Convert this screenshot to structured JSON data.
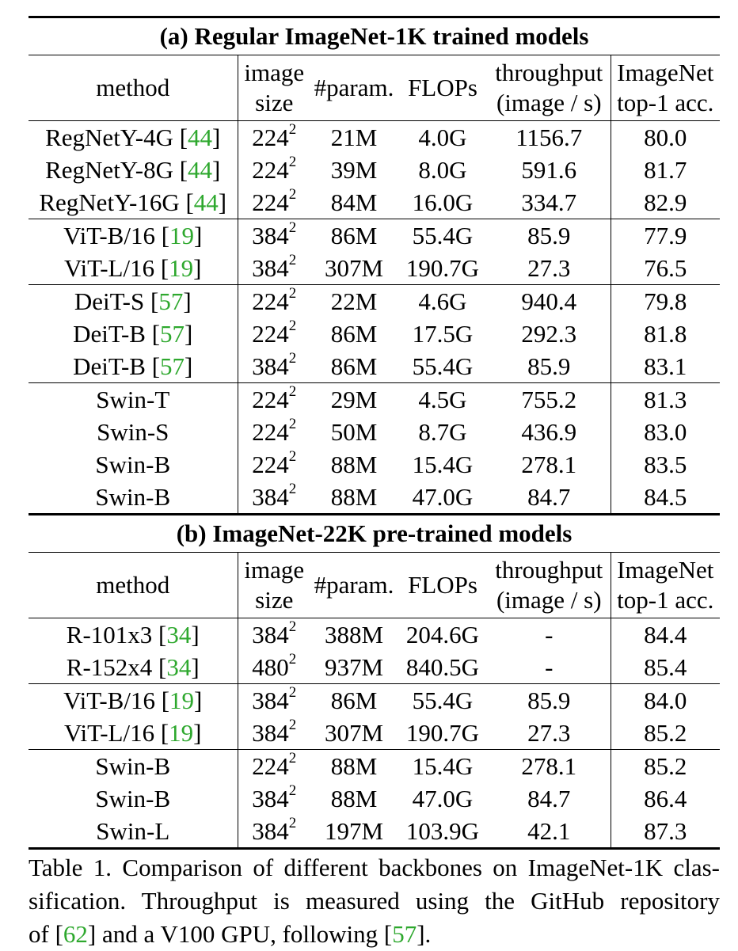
{
  "columns": {
    "method": "method",
    "image_size": [
      "image",
      "size"
    ],
    "params": "#param.",
    "flops": "FLOPs",
    "throughput": [
      "throughput",
      "(image / s)"
    ],
    "acc": [
      "ImageNet",
      "top-1 acc."
    ]
  },
  "sections": [
    {
      "title": "(a) Regular ImageNet-1K trained models",
      "groups": [
        [
          {
            "method": "RegNetY-4G",
            "ref": "44",
            "res": "224",
            "exp": "2",
            "params": "21M",
            "flops": "4.0G",
            "throughput": "1156.7",
            "acc": "80.0"
          },
          {
            "method": "RegNetY-8G",
            "ref": "44",
            "res": "224",
            "exp": "2",
            "params": "39M",
            "flops": "8.0G",
            "throughput": "591.6",
            "acc": "81.7"
          },
          {
            "method": "RegNetY-16G",
            "ref": "44",
            "res": "224",
            "exp": "2",
            "params": "84M",
            "flops": "16.0G",
            "throughput": "334.7",
            "acc": "82.9"
          }
        ],
        [
          {
            "method": "ViT-B/16",
            "ref": "19",
            "res": "384",
            "exp": "2",
            "params": "86M",
            "flops": "55.4G",
            "throughput": "85.9",
            "acc": "77.9"
          },
          {
            "method": "ViT-L/16",
            "ref": "19",
            "res": "384",
            "exp": "2",
            "params": "307M",
            "flops": "190.7G",
            "throughput": "27.3",
            "acc": "76.5"
          }
        ],
        [
          {
            "method": "DeiT-S",
            "ref": "57",
            "res": "224",
            "exp": "2",
            "params": "22M",
            "flops": "4.6G",
            "throughput": "940.4",
            "acc": "79.8"
          },
          {
            "method": "DeiT-B",
            "ref": "57",
            "res": "224",
            "exp": "2",
            "params": "86M",
            "flops": "17.5G",
            "throughput": "292.3",
            "acc": "81.8"
          },
          {
            "method": "DeiT-B",
            "ref": "57",
            "res": "384",
            "exp": "2",
            "params": "86M",
            "flops": "55.4G",
            "throughput": "85.9",
            "acc": "83.1"
          }
        ],
        [
          {
            "method": "Swin-T",
            "ref": "",
            "res": "224",
            "exp": "2",
            "params": "29M",
            "flops": "4.5G",
            "throughput": "755.2",
            "acc": "81.3"
          },
          {
            "method": "Swin-S",
            "ref": "",
            "res": "224",
            "exp": "2",
            "params": "50M",
            "flops": "8.7G",
            "throughput": "436.9",
            "acc": "83.0"
          },
          {
            "method": "Swin-B",
            "ref": "",
            "res": "224",
            "exp": "2",
            "params": "88M",
            "flops": "15.4G",
            "throughput": "278.1",
            "acc": "83.5"
          },
          {
            "method": "Swin-B",
            "ref": "",
            "res": "384",
            "exp": "2",
            "params": "88M",
            "flops": "47.0G",
            "throughput": "84.7",
            "acc": "84.5"
          }
        ]
      ]
    },
    {
      "title": "(b) ImageNet-22K pre-trained models",
      "groups": [
        [
          {
            "method": "R-101x3",
            "ref": "34",
            "res": "384",
            "exp": "2",
            "params": "388M",
            "flops": "204.6G",
            "throughput": "-",
            "acc": "84.4"
          },
          {
            "method": "R-152x4",
            "ref": "34",
            "res": "480",
            "exp": "2",
            "params": "937M",
            "flops": "840.5G",
            "throughput": "-",
            "acc": "85.4"
          }
        ],
        [
          {
            "method": "ViT-B/16",
            "ref": "19",
            "res": "384",
            "exp": "2",
            "params": "86M",
            "flops": "55.4G",
            "throughput": "85.9",
            "acc": "84.0"
          },
          {
            "method": "ViT-L/16",
            "ref": "19",
            "res": "384",
            "exp": "2",
            "params": "307M",
            "flops": "190.7G",
            "throughput": "27.3",
            "acc": "85.2"
          }
        ],
        [
          {
            "method": "Swin-B",
            "ref": "",
            "res": "224",
            "exp": "2",
            "params": "88M",
            "flops": "15.4G",
            "throughput": "278.1",
            "acc": "85.2"
          },
          {
            "method": "Swin-B",
            "ref": "",
            "res": "384",
            "exp": "2",
            "params": "88M",
            "flops": "47.0G",
            "throughput": "84.7",
            "acc": "86.4"
          },
          {
            "method": "Swin-L",
            "ref": "",
            "res": "384",
            "exp": "2",
            "params": "197M",
            "flops": "103.9G",
            "throughput": "42.1",
            "acc": "87.3"
          }
        ]
      ]
    }
  ],
  "caption": {
    "lines": [
      [
        {
          "t": "Table 1. Comparison of different backbones on ImageNet-1K clas-"
        }
      ],
      [
        {
          "t": "sification.  Throughput is measured using the GitHub repository"
        }
      ],
      [
        {
          "t": "of ["
        },
        {
          "t": "62",
          "ref": true
        },
        {
          "t": "] and a V100 GPU, following ["
        },
        {
          "t": "57",
          "ref": true
        },
        {
          "t": "]."
        }
      ]
    ]
  },
  "colors": {
    "reference_link": "#2ea82e",
    "text": "#000000"
  }
}
